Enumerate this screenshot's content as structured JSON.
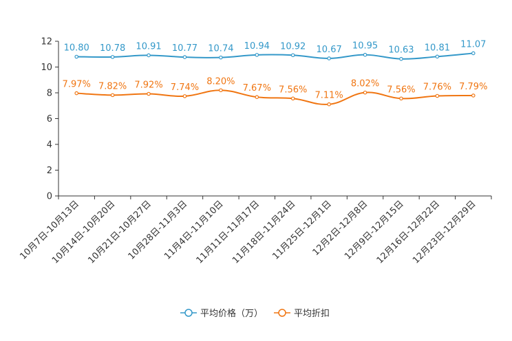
{
  "chart_data": {
    "type": "line",
    "categories": [
      "10月7日-10月13日",
      "10月14日-10月20日",
      "10月21日-10月27日",
      "10月28日-11月3日",
      "11月4日-11月10日",
      "11月11日-11月17日",
      "11月18日-11月24日",
      "11月25日-12月1日",
      "12月2日-12月8日",
      "12月9日-12月15日",
      "12月16日-12月22日",
      "12月23日-12月29日"
    ],
    "ylim": [
      0,
      12
    ],
    "yticks": [
      0,
      2,
      4,
      6,
      8,
      10,
      12
    ],
    "ytick_labels": [
      "0",
      "2",
      "4",
      "6",
      "8",
      "10",
      "12"
    ],
    "series": [
      {
        "name": "平均价格（万）",
        "color": "#3398c9",
        "values": [
          10.8,
          10.78,
          10.91,
          10.77,
          10.74,
          10.94,
          10.92,
          10.67,
          10.95,
          10.63,
          10.81,
          11.07
        ],
        "labels": [
          "10.80",
          "10.78",
          "10.91",
          "10.77",
          "10.74",
          "10.94",
          "10.92",
          "10.67",
          "10.95",
          "10.63",
          "10.81",
          "11.07"
        ]
      },
      {
        "name": "平均折扣",
        "color": "#f07511",
        "values": [
          7.97,
          7.82,
          7.92,
          7.74,
          8.2,
          7.67,
          7.56,
          7.11,
          8.02,
          7.56,
          7.76,
          7.79
        ],
        "labels": [
          "7.97%",
          "7.82%",
          "7.92%",
          "7.74%",
          "8.20%",
          "7.67%",
          "7.56%",
          "7.11%",
          "8.02%",
          "7.56%",
          "7.76%",
          "7.79%"
        ]
      }
    ],
    "legend_position": "bottom-center"
  }
}
